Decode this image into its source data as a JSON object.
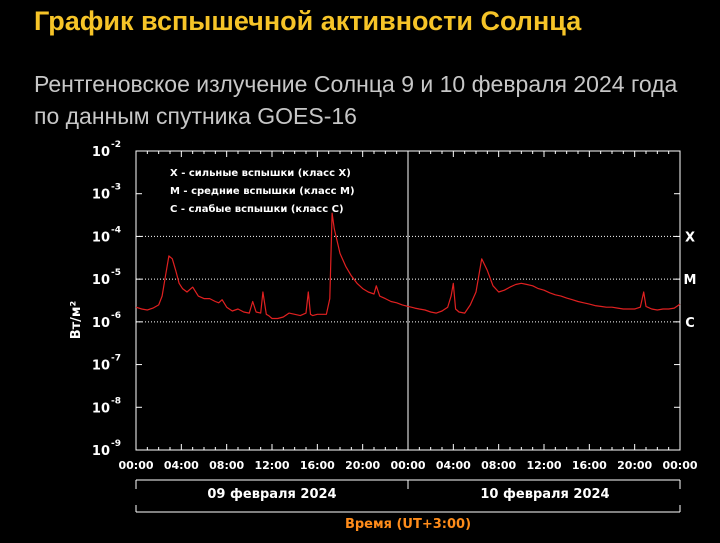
{
  "page": {
    "title": "График вспышечной активности Солнца",
    "subtitle": "Рентгеновское излучение Солнца 9 и 10 февраля 2024 года по данным спутника GOES-16"
  },
  "chart_data": {
    "type": "line",
    "ylabel": "Вт/м²",
    "xlabel": "Время (UT+3:00)",
    "yscale": "log",
    "ylim": [
      1e-09,
      0.01
    ],
    "xlim": [
      0,
      48
    ],
    "x_ticks": [
      "00:00",
      "04:00",
      "08:00",
      "12:00",
      "16:00",
      "20:00",
      "00:00",
      "04:00",
      "08:00",
      "12:00",
      "16:00",
      "20:00",
      "00:00"
    ],
    "y_ticks": [
      {
        "base": "10",
        "exp": "-2"
      },
      {
        "base": "10",
        "exp": "-3"
      },
      {
        "base": "10",
        "exp": "-4"
      },
      {
        "base": "10",
        "exp": "-5"
      },
      {
        "base": "10",
        "exp": "-6"
      },
      {
        "base": "10",
        "exp": "-7"
      },
      {
        "base": "10",
        "exp": "-8"
      },
      {
        "base": "10",
        "exp": "-9"
      }
    ],
    "days": [
      "09 февраля 2024",
      "10 февраля 2024"
    ],
    "legend": [
      "X - сильные вспышки (класс X)",
      "M - средние вспышки (класс M)",
      "C - слабые вспышки (класс C)"
    ],
    "class_levels": [
      {
        "label": "X",
        "value": 0.0001
      },
      {
        "label": "M",
        "value": 1e-05
      },
      {
        "label": "C",
        "value": 1e-06
      }
    ],
    "grid": false,
    "colors": {
      "line": "#e02020",
      "axes": "#ffffff",
      "level_lines": "#ffffff",
      "time_label": "#ff8c1a",
      "title": "#f6c428",
      "subtitle": "#c7c7c7"
    },
    "series": [
      {
        "x": [
          0,
          0.5,
          1,
          1.5,
          2,
          2.3,
          2.6,
          2.9,
          3.2,
          3.5,
          3.8,
          4.1,
          4.5,
          5,
          5.5,
          6,
          6.5,
          7,
          7.3,
          7.6,
          8,
          8.5,
          9,
          9.5,
          10,
          10.3,
          10.6,
          11,
          11.2,
          11.5,
          11.7,
          12,
          12.5,
          13,
          13.5,
          14,
          14.5,
          15,
          15.2,
          15.4,
          15.6,
          16,
          16.5,
          16.8,
          17.1,
          17.3,
          17.5,
          18,
          18.5,
          19,
          19.5,
          20,
          20.5,
          21,
          21.2,
          21.5,
          22,
          22.5,
          23,
          23.5,
          24,
          24.3,
          24.6,
          25,
          25.5,
          26,
          26.5,
          27,
          27.5,
          27.8,
          28,
          28.2,
          28.5,
          29,
          29.5,
          30,
          30.5,
          31,
          31.5,
          32,
          32.5,
          33,
          33.5,
          34,
          34.5,
          35,
          35.5,
          36,
          36.5,
          37,
          37.5,
          38,
          38.5,
          39,
          39.5,
          40,
          40.5,
          41,
          41.5,
          42,
          42.5,
          43,
          43.5,
          44,
          44.5,
          44.8,
          45,
          45.5,
          46,
          46.5,
          47,
          47.5,
          48
        ],
        "y": [
          2.2e-06,
          2e-06,
          1.9e-06,
          2.1e-06,
          2.5e-06,
          4e-06,
          1.2e-05,
          3.5e-05,
          3e-05,
          1.6e-05,
          8e-06,
          6e-06,
          5e-06,
          6.5e-06,
          4e-06,
          3.5e-06,
          3.5e-06,
          3e-06,
          2.8e-06,
          3.3e-06,
          2.2e-06,
          1.8e-06,
          2e-06,
          1.7e-06,
          1.6e-06,
          3e-06,
          1.7e-06,
          1.6e-06,
          5e-06,
          1.5e-06,
          1.4e-06,
          1.2e-06,
          1.2e-06,
          1.3e-06,
          1.6e-06,
          1.5e-06,
          1.4e-06,
          1.6e-06,
          5e-06,
          1.5e-06,
          1.4e-06,
          1.5e-06,
          1.5e-06,
          1.5e-06,
          3.5e-06,
          0.00035,
          0.00015,
          4e-05,
          2e-05,
          1.2e-05,
          8e-06,
          6e-06,
          5e-06,
          4.5e-06,
          7e-06,
          4e-06,
          3.5e-06,
          3e-06,
          2.8e-06,
          2.5e-06,
          2.3e-06,
          2.2e-06,
          2.1e-06,
          2e-06,
          1.9e-06,
          1.7e-06,
          1.6e-06,
          1.8e-06,
          2.2e-06,
          4e-06,
          8e-06,
          2e-06,
          1.7e-06,
          1.6e-06,
          2.5e-06,
          5e-06,
          3e-05,
          1.6e-05,
          7e-06,
          5e-06,
          5.5e-06,
          6.5e-06,
          7.5e-06,
          8e-06,
          7.5e-06,
          7e-06,
          6e-06,
          5.5e-06,
          4.8e-06,
          4.3e-06,
          4e-06,
          3.6e-06,
          3.3e-06,
          3e-06,
          2.8e-06,
          2.6e-06,
          2.4e-06,
          2.3e-06,
          2.2e-06,
          2.2e-06,
          2.1e-06,
          2e-06,
          2e-06,
          2e-06,
          2.2e-06,
          5e-06,
          2.3e-06,
          2e-06,
          1.9e-06,
          2e-06,
          2e-06,
          2.1e-06,
          2.6e-06
        ]
      }
    ]
  }
}
